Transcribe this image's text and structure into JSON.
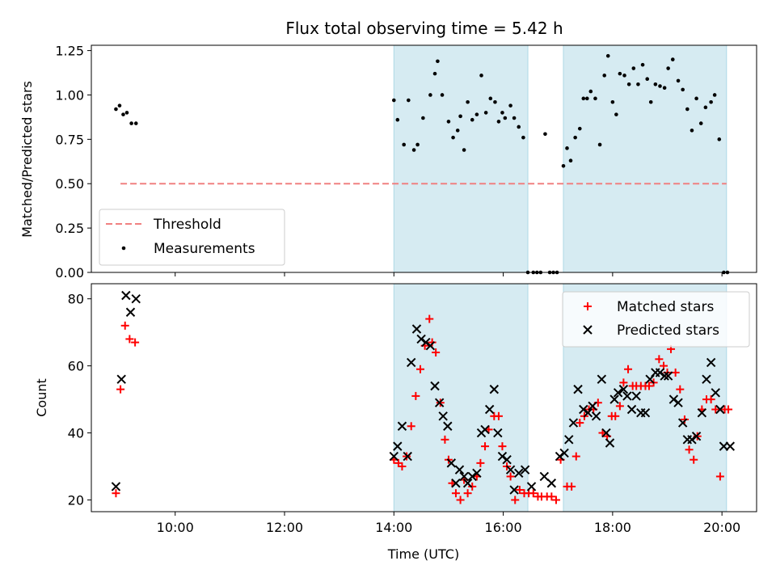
{
  "chart_data": [
    {
      "type": "scatter",
      "title": "Flux total observing time = 5.42 h",
      "xlabel": "",
      "ylabel": "Matched/Predicted stars",
      "xlim": [
        "08:28",
        "20:38"
      ],
      "ylim": [
        0,
        1.28
      ],
      "yticks": [
        "0.00",
        "0.25",
        "0.50",
        "0.75",
        "1.00",
        "1.25"
      ],
      "grid": false,
      "legend": {
        "placement": "lower-left",
        "entries": [
          "Threshold",
          "Measurements"
        ]
      },
      "shaded_intervals": [
        [
          "14:00",
          "16:27"
        ],
        [
          "17:06",
          "20:05"
        ]
      ],
      "shade_color": "#add8e6",
      "threshold": {
        "name": "Threshold",
        "y": 0.5,
        "x_range": [
          "09:00",
          "20:05"
        ],
        "color": "#f08080",
        "style": "dashed"
      },
      "series": [
        {
          "name": "Measurements",
          "color": "#000000",
          "x": [
            "08:55",
            "08:59",
            "09:03",
            "09:07",
            "09:12",
            "09:17",
            "14:00",
            "14:04",
            "14:11",
            "14:16",
            "14:22",
            "14:26",
            "14:32",
            "14:40",
            "14:45",
            "14:48",
            "14:53",
            "15:00",
            "15:05",
            "15:10",
            "15:13",
            "15:17",
            "15:21",
            "15:26",
            "15:31",
            "15:36",
            "15:41",
            "15:46",
            "15:51",
            "15:55",
            "15:59",
            "16:02",
            "16:08",
            "16:12",
            "16:17",
            "16:22",
            "16:27",
            "16:33",
            "16:37",
            "16:41",
            "16:46",
            "16:51",
            "16:55",
            "16:59",
            "17:06",
            "17:10",
            "17:14",
            "17:19",
            "17:24",
            "17:28",
            "17:32",
            "17:36",
            "17:41",
            "17:46",
            "17:51",
            "17:55",
            "18:00",
            "18:04",
            "18:08",
            "18:13",
            "18:18",
            "18:23",
            "18:28",
            "18:33",
            "18:38",
            "18:42",
            "18:47",
            "18:52",
            "18:57",
            "19:01",
            "19:06",
            "19:12",
            "19:17",
            "19:22",
            "19:27",
            "19:32",
            "19:37",
            "19:42",
            "19:48",
            "19:52",
            "19:57",
            "20:02",
            "20:06"
          ],
          "y": [
            0.92,
            0.94,
            0.89,
            0.9,
            0.84,
            0.84,
            0.97,
            0.86,
            0.72,
            0.97,
            0.69,
            0.72,
            0.87,
            1.0,
            1.12,
            1.19,
            1.0,
            0.85,
            0.76,
            0.8,
            0.88,
            0.69,
            0.96,
            0.86,
            0.89,
            1.11,
            0.9,
            0.98,
            0.96,
            0.85,
            0.9,
            0.87,
            0.94,
            0.87,
            0.82,
            0.76,
            0.0,
            0.0,
            0.0,
            0.0,
            0.78,
            0.0,
            0.0,
            0.0,
            0.6,
            0.7,
            0.63,
            0.76,
            0.81,
            0.98,
            0.98,
            1.02,
            0.98,
            0.72,
            1.11,
            1.22,
            0.96,
            0.89,
            1.12,
            1.11,
            1.06,
            1.15,
            1.06,
            1.17,
            1.09,
            0.96,
            1.06,
            1.05,
            1.04,
            1.15,
            1.2,
            1.08,
            1.03,
            0.92,
            0.8,
            0.98,
            0.84,
            0.93,
            0.96,
            1.0,
            0.75,
            0.0,
            0.0
          ]
        }
      ]
    },
    {
      "type": "scatter",
      "title": "",
      "xlabel": "Time (UTC)",
      "ylabel": "Count",
      "xlim": [
        "08:28",
        "20:38"
      ],
      "ylim": [
        16.5,
        84.5
      ],
      "yticks": [
        "20",
        "40",
        "60",
        "80"
      ],
      "xticks": [
        "10:00",
        "12:00",
        "14:00",
        "16:00",
        "18:00",
        "20:00"
      ],
      "grid": false,
      "legend": {
        "placement": "top-right",
        "entries": [
          "Matched stars",
          "Predicted stars"
        ]
      },
      "shaded_intervals": [
        [
          "14:00",
          "16:27"
        ],
        [
          "17:06",
          "20:05"
        ]
      ],
      "shade_color": "#add8e6",
      "series": [
        {
          "name": "Matched stars",
          "marker": "plus",
          "color": "#ff0000",
          "x": [
            "08:55",
            "09:00",
            "09:05",
            "09:10",
            "09:16",
            "14:00",
            "14:05",
            "14:09",
            "14:14",
            "14:19",
            "14:24",
            "14:29",
            "14:34",
            "14:39",
            "14:42",
            "14:46",
            "14:51",
            "14:56",
            "15:00",
            "15:04",
            "15:08",
            "15:13",
            "15:17",
            "15:21",
            "15:26",
            "15:31",
            "15:35",
            "15:40",
            "15:44",
            "15:50",
            "15:55",
            "15:59",
            "16:04",
            "16:08",
            "16:13",
            "16:18",
            "16:23",
            "16:28",
            "16:33",
            "16:38",
            "16:42",
            "16:48",
            "16:53",
            "16:58",
            "17:03",
            "17:10",
            "17:15",
            "17:20",
            "17:24",
            "17:29",
            "17:34",
            "17:39",
            "17:44",
            "17:49",
            "17:54",
            "17:59",
            "18:03",
            "18:08",
            "18:12",
            "18:17",
            "18:22",
            "18:26",
            "18:31",
            "18:36",
            "18:40",
            "18:45",
            "18:51",
            "18:56",
            "19:00",
            "19:04",
            "19:09",
            "19:14",
            "19:19",
            "19:24",
            "19:29",
            "19:33",
            "19:38",
            "19:43",
            "19:48",
            "19:53",
            "19:58",
            "20:03",
            "20:07"
          ],
          "y": [
            22,
            53,
            72,
            68,
            67,
            32,
            31,
            30,
            33,
            42,
            51,
            59,
            66,
            74,
            67,
            64,
            49,
            38,
            32,
            25,
            22,
            20,
            26,
            22,
            24,
            27,
            31,
            36,
            41,
            45,
            45,
            36,
            30,
            27,
            20,
            23,
            22,
            22,
            22,
            21,
            21,
            21,
            21,
            20,
            32,
            24,
            24,
            33,
            43,
            45,
            47,
            47,
            49,
            40,
            39,
            45,
            45,
            48,
            55,
            59,
            54,
            54,
            54,
            54,
            54,
            55,
            62,
            60,
            58,
            65,
            58,
            53,
            44,
            35,
            32,
            39,
            47,
            50,
            50,
            47,
            27,
            47,
            47
          ]
        },
        {
          "name": "Predicted stars",
          "marker": "x",
          "color": "#000000",
          "x": [
            "08:55",
            "09:01",
            "09:06",
            "09:11",
            "09:17",
            "14:00",
            "14:04",
            "14:09",
            "14:15",
            "14:19",
            "14:25",
            "14:30",
            "14:35",
            "14:40",
            "14:45",
            "14:50",
            "14:54",
            "14:59",
            "15:03",
            "15:08",
            "15:12",
            "15:17",
            "15:21",
            "15:26",
            "15:31",
            "15:36",
            "15:40",
            "15:45",
            "15:50",
            "15:54",
            "15:59",
            "16:04",
            "16:08",
            "16:12",
            "16:17",
            "16:24",
            "16:31",
            "16:45",
            "16:53",
            "17:02",
            "17:07",
            "17:12",
            "17:17",
            "17:22",
            "17:28",
            "17:33",
            "17:38",
            "17:42",
            "17:48",
            "17:53",
            "17:57",
            "18:02",
            "18:06",
            "18:12",
            "18:16",
            "18:21",
            "18:26",
            "18:31",
            "18:36",
            "18:41",
            "18:47",
            "18:52",
            "18:57",
            "19:01",
            "19:07",
            "19:12",
            "19:17",
            "19:22",
            "19:27",
            "19:32",
            "19:38",
            "19:43",
            "19:48",
            "19:53",
            "19:58",
            "20:02",
            "20:09"
          ],
          "y": [
            24,
            56,
            81,
            76,
            80,
            33,
            36,
            42,
            33,
            61,
            71,
            68,
            67,
            66,
            54,
            49,
            45,
            42,
            31,
            25,
            29,
            27,
            25,
            27,
            28,
            40,
            41,
            47,
            53,
            40,
            33,
            32,
            29,
            23,
            28,
            29,
            24,
            27,
            25,
            33,
            34,
            38,
            43,
            53,
            47,
            46,
            48,
            45,
            56,
            40,
            37,
            50,
            52,
            53,
            51,
            47,
            51,
            46,
            46,
            56,
            58,
            58,
            57,
            57,
            50,
            49,
            43,
            38,
            38,
            39,
            46,
            56,
            61,
            52,
            47,
            36,
            36
          ]
        }
      ]
    }
  ]
}
